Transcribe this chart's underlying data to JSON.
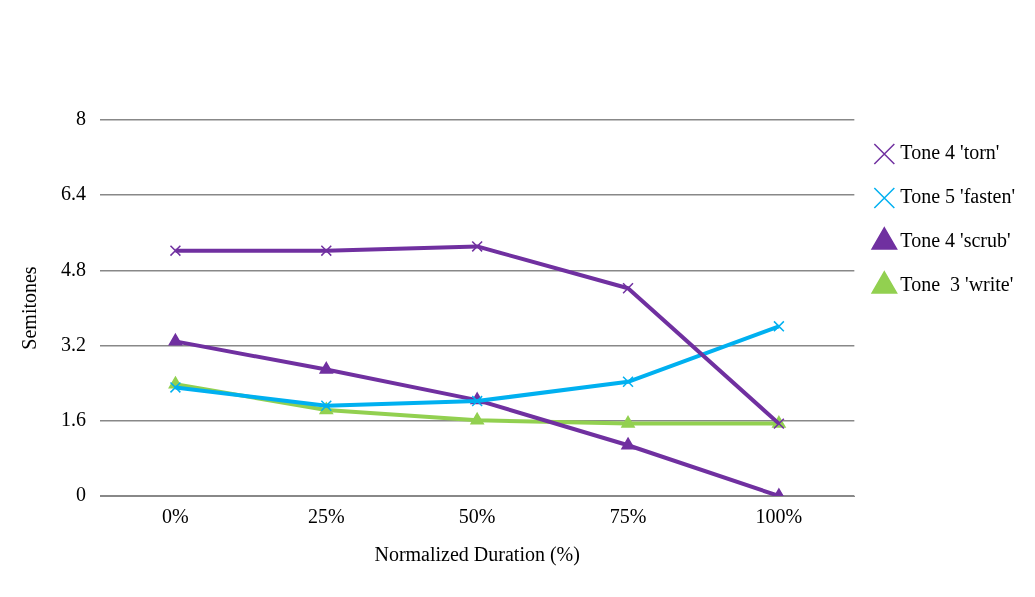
{
  "chart_data": {
    "type": "line",
    "xlabel": "Normalized Duration (%)",
    "ylabel": "Semitones",
    "categories": [
      "0%",
      "25%",
      "50%",
      "75%",
      "100%"
    ],
    "series": [
      {
        "name": "Tone 4 'torn'",
        "color": "#7030a0",
        "marker": "cross",
        "values": [
          5.22,
          5.22,
          5.31,
          4.42,
          1.54
        ]
      },
      {
        "name": "Tone 5 'fasten'",
        "color": "#00b0f0",
        "marker": "cross",
        "values": [
          2.31,
          1.92,
          2.02,
          2.43,
          3.61
        ]
      },
      {
        "name": "Tone 4 'scrub'",
        "color": "#7030a0",
        "marker": "triangle",
        "values": [
          3.29,
          2.69,
          2.04,
          1.08,
          0
        ]
      },
      {
        "name": "Tone  3 'write'",
        "color": "#92d050",
        "marker": "triangle",
        "values": [
          2.38,
          1.83,
          1.61,
          1.54,
          1.54
        ]
      }
    ],
    "ylim": [
      0,
      8
    ],
    "yticks": [
      0,
      1.6,
      3.2,
      4.8,
      6.4,
      8
    ],
    "grid": "y",
    "legend": "right"
  }
}
